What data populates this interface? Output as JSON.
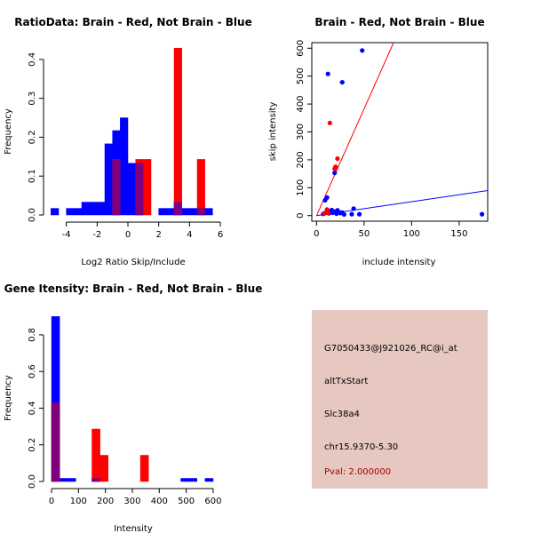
{
  "colors": {
    "red": "#ff0000",
    "blue": "#0000ff",
    "overlap": "#7f007f",
    "panel_bg": "#e6c8c0",
    "pval_text": "#aa0000"
  },
  "chart_data": [
    {
      "type": "histogram",
      "title": "RatioData: Brain - Red, Not Brain - Blue",
      "xlabel": "Log2 Ratio Skip/Include",
      "ylabel": "Frequency",
      "xlim": [
        -6,
        6
      ],
      "ylim": [
        0,
        0.45
      ],
      "xticks": [
        "-4",
        "-2",
        "0",
        "2",
        "4",
        "6"
      ],
      "xtick_values": [
        -4,
        -2,
        0,
        2,
        4,
        6
      ],
      "yticks": [
        "0.0",
        "0.1",
        "0.2",
        "0.3",
        "0.4"
      ],
      "ytick_values": [
        0,
        0.1,
        0.2,
        0.3,
        0.4
      ],
      "bin_width": 0.5,
      "series": [
        {
          "name": "Not Brain",
          "color": "blue",
          "bins": [
            {
              "x0": -5.0,
              "v": 0.017
            },
            {
              "x0": -4.0,
              "v": 0.017
            },
            {
              "x0": -3.5,
              "v": 0.017
            },
            {
              "x0": -3.0,
              "v": 0.033
            },
            {
              "x0": -2.5,
              "v": 0.033
            },
            {
              "x0": -2.0,
              "v": 0.033
            },
            {
              "x0": -1.5,
              "v": 0.183
            },
            {
              "x0": -1.0,
              "v": 0.217
            },
            {
              "x0": -0.5,
              "v": 0.25
            },
            {
              "x0": 0.0,
              "v": 0.133
            },
            {
              "x0": 0.5,
              "v": 0.133
            },
            {
              "x0": 2.0,
              "v": 0.017
            },
            {
              "x0": 2.5,
              "v": 0.017
            },
            {
              "x0": 3.0,
              "v": 0.033
            },
            {
              "x0": 3.5,
              "v": 0.017
            },
            {
              "x0": 4.0,
              "v": 0.017
            },
            {
              "x0": 4.5,
              "v": 0.017
            },
            {
              "x0": 5.0,
              "v": 0.017
            }
          ]
        },
        {
          "name": "Brain",
          "color": "red",
          "bins": [
            {
              "x0": -1.0,
              "v": 0.143
            },
            {
              "x0": 0.5,
              "v": 0.143
            },
            {
              "x0": 1.0,
              "v": 0.143
            },
            {
              "x0": 3.0,
              "v": 0.429
            },
            {
              "x0": 4.5,
              "v": 0.143
            }
          ]
        }
      ]
    },
    {
      "type": "scatter",
      "title": "Brain - Red, Not Brain - Blue",
      "xlabel": "include intensity",
      "ylabel": "skip intensity",
      "xlim": [
        -5,
        180
      ],
      "ylim": [
        -20,
        620
      ],
      "xticks": [
        "0",
        "50",
        "100",
        "150"
      ],
      "xtick_values": [
        0,
        50,
        100,
        150
      ],
      "yticks": [
        "0",
        "100",
        "200",
        "300",
        "400",
        "500",
        "600"
      ],
      "ytick_values": [
        0,
        100,
        200,
        300,
        400,
        500,
        600
      ],
      "lines": [
        {
          "name": "Brain fit",
          "color": "red",
          "x": [
            0,
            81
          ],
          "y": [
            0,
            620
          ]
        },
        {
          "name": "Not Brain fit",
          "color": "blue",
          "x": [
            0,
            180
          ],
          "y": [
            0,
            90
          ]
        }
      ],
      "series": [
        {
          "name": "Not Brain",
          "color": "blue",
          "points": [
            [
              48,
              592
            ],
            [
              12,
              508
            ],
            [
              27,
              478
            ],
            [
              19,
              153
            ],
            [
              11,
              65
            ],
            [
              9,
              55
            ],
            [
              7,
              6
            ],
            [
              9,
              9
            ],
            [
              11,
              13
            ],
            [
              13,
              8
            ],
            [
              15,
              17
            ],
            [
              17,
              10
            ],
            [
              19,
              14
            ],
            [
              21,
              7
            ],
            [
              23,
              13
            ],
            [
              25,
              9
            ],
            [
              27,
              11
            ],
            [
              29,
              4
            ],
            [
              37,
              5
            ],
            [
              39,
              25
            ],
            [
              45,
              5
            ],
            [
              174,
              5
            ],
            [
              16,
              20
            ],
            [
              22,
              19
            ]
          ]
        },
        {
          "name": "Brain",
          "color": "red",
          "points": [
            [
              14,
              332
            ],
            [
              20,
              175
            ],
            [
              19,
              168
            ],
            [
              22,
              204
            ],
            [
              11,
              22
            ],
            [
              12,
              10
            ],
            [
              8,
              8
            ]
          ]
        }
      ]
    },
    {
      "type": "histogram",
      "title": "Gene Itensity: Brain - Red, Not Brain - Blue",
      "xlabel": "Intensity",
      "ylabel": "Frequency",
      "xlim": [
        -10,
        620
      ],
      "ylim": [
        0,
        0.95
      ],
      "xticks": [
        "0",
        "100",
        "200",
        "300",
        "400",
        "500",
        "600"
      ],
      "xtick_values": [
        0,
        100,
        200,
        300,
        400,
        500,
        600
      ],
      "yticks": [
        "0.0",
        "0.2",
        "0.4",
        "0.6",
        "0.8"
      ],
      "ytick_values": [
        0,
        0.2,
        0.4,
        0.6,
        0.8
      ],
      "bin_width": 30,
      "series": [
        {
          "name": "Not Brain",
          "color": "blue",
          "bins": [
            {
              "x0": 0,
              "v": 0.9
            },
            {
              "x0": 30,
              "v": 0.017
            },
            {
              "x0": 60,
              "v": 0.017
            },
            {
              "x0": 150,
              "v": 0.017
            },
            {
              "x0": 480,
              "v": 0.017
            },
            {
              "x0": 510,
              "v": 0.017
            },
            {
              "x0": 570,
              "v": 0.017
            }
          ]
        },
        {
          "name": "Brain",
          "color": "red",
          "bins": [
            {
              "x0": 0,
              "v": 0.429
            },
            {
              "x0": 150,
              "v": 0.286
            },
            {
              "x0": 180,
              "v": 0.143
            },
            {
              "x0": 330,
              "v": 0.143
            }
          ]
        }
      ]
    }
  ],
  "info": {
    "probe_id": "G7050433@J921026_RC@i_at",
    "event_type": "altTxStart",
    "gene": "Slc38a4",
    "location": "chr15.9370-5.30",
    "pval": "Pval: 2.000000"
  }
}
